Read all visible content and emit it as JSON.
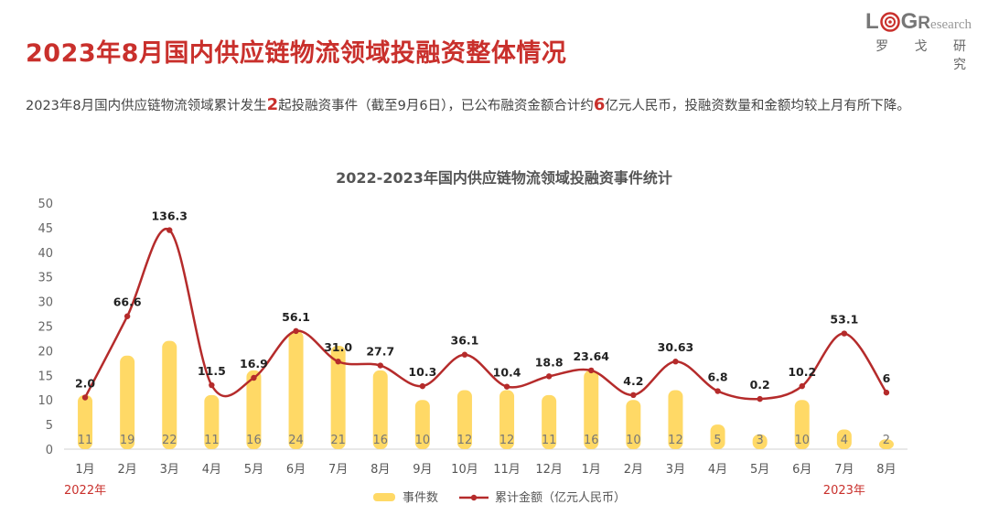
{
  "page": {
    "title": "2023年8月国内供应链物流领域投融资整体情况",
    "logo": {
      "letters": "LOGResearch",
      "subtitle": "罗 戈 研 究"
    },
    "summary": {
      "part1": "2023年8月国内供应链物流领域累计发生",
      "num1": "2",
      "part2": "起投融资事件（截至9月6日），已公布融资金额合计约",
      "num2": "6",
      "part3": "亿元人民币，投融资数量和金额均较上月有所下降。"
    }
  },
  "colors": {
    "title": "#c9302c",
    "highlight": "#c9302c",
    "bar": "#ffd966",
    "line": "#b52b2b",
    "year_label": "#c9302c"
  },
  "chart_data": {
    "type": "bar+line",
    "title": "2022-2023年国内供应链物流领域投融资事件统计",
    "categories": [
      "1月",
      "2月",
      "3月",
      "4月",
      "5月",
      "6月",
      "7月",
      "8月",
      "9月",
      "10月",
      "11月",
      "12月",
      "1月",
      "2月",
      "3月",
      "4月",
      "5月",
      "6月",
      "7月",
      "8月"
    ],
    "year_labels": [
      {
        "text": "2022年",
        "category_index": 0
      },
      {
        "text": "2023年",
        "category_index": 18
      }
    ],
    "ylim": [
      0,
      50
    ],
    "yticks": [
      0,
      5,
      10,
      15,
      20,
      25,
      30,
      35,
      40,
      45,
      50
    ],
    "grid": false,
    "legend_position": "bottom",
    "series": [
      {
        "name": "事件数",
        "type": "bar",
        "values": [
          11,
          19,
          22,
          11,
          16,
          24,
          21,
          16,
          10,
          12,
          12,
          11,
          16,
          10,
          12,
          5,
          3,
          10,
          4,
          2
        ],
        "labels": [
          "11",
          "19",
          "22",
          "11",
          "16",
          "24",
          "21",
          "16",
          "10",
          "12",
          "12",
          "11",
          "16",
          "10",
          "12",
          "5",
          "3",
          "10",
          "4",
          "2"
        ]
      },
      {
        "name": "累计金额（亿元人民币）",
        "type": "line",
        "labels": [
          "2.0",
          "66.6",
          "136.3",
          "11.5",
          "16.9",
          "56.1",
          "31.0",
          "27.7",
          "10.3",
          "36.1",
          "10.4",
          "18.8",
          "23.64",
          "4.2",
          "30.63",
          "6.8",
          "0.2",
          "10.2",
          "53.1",
          "6"
        ],
        "plotted_values": [
          10.5,
          27,
          44.5,
          13,
          14.5,
          24,
          17.8,
          17,
          12.8,
          19.2,
          12.7,
          14.8,
          16,
          11,
          17.8,
          11.8,
          10.2,
          12.8,
          23.5,
          11.5
        ]
      }
    ]
  }
}
